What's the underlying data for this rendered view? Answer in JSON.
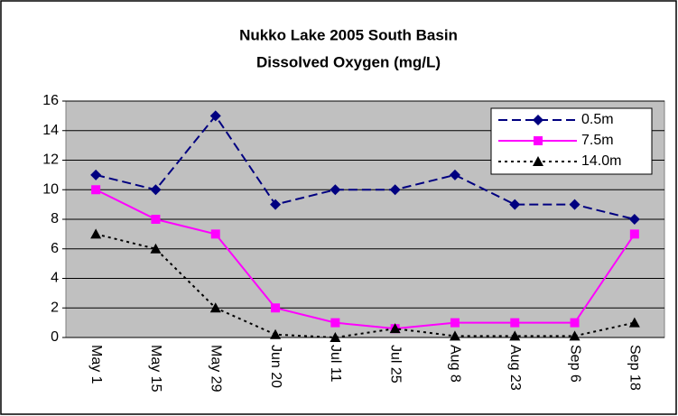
{
  "chart_data": {
    "type": "line",
    "title": [
      "Nukko Lake 2005 South Basin",
      "Dissolved Oxygen (mg/L)"
    ],
    "categories": [
      "May 1",
      "May 15",
      "May 29",
      "Jun 20",
      "Jul 11",
      "Jul 25",
      "Aug 8",
      "Aug 23",
      "Sep 6",
      "Sep 18"
    ],
    "series": [
      {
        "name": "0.5m",
        "color": "#000080",
        "dash": "dashed",
        "marker": "diamond",
        "values": [
          11,
          10,
          15,
          9,
          10,
          10,
          11,
          9,
          9,
          8
        ]
      },
      {
        "name": "7.5m",
        "color": "#ff00ff",
        "dash": "solid",
        "marker": "square",
        "values": [
          10,
          8,
          7,
          2,
          1,
          0.6,
          1,
          1,
          1,
          7
        ]
      },
      {
        "name": "14.0m",
        "color": "#000000",
        "dash": "dotted",
        "marker": "triangle",
        "values": [
          7,
          6,
          2,
          0.2,
          0,
          0.6,
          0.1,
          0.1,
          0.1,
          1
        ]
      }
    ],
    "ylim": [
      0,
      16
    ],
    "yticks": [
      0,
      2,
      4,
      6,
      8,
      10,
      12,
      14,
      16
    ],
    "grid": true,
    "legend": "upper right"
  }
}
